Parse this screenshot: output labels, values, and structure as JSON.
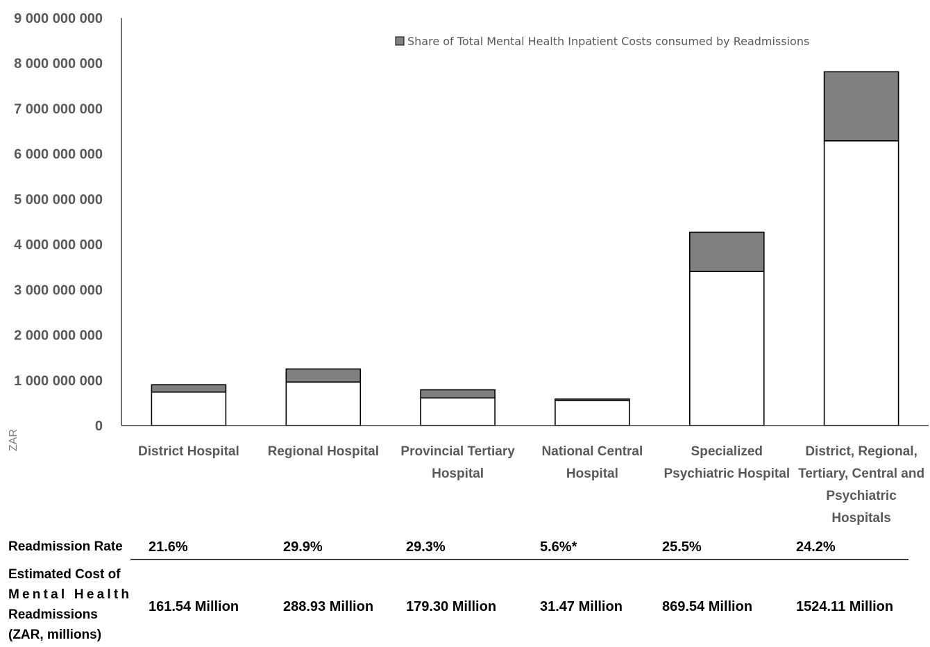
{
  "chart_data": {
    "type": "bar",
    "stacked": true,
    "categories": [
      [
        "District Hospital"
      ],
      [
        "Regional Hospital"
      ],
      [
        "Provincial Tertiary",
        "Hospital"
      ],
      [
        "National Central",
        "Hospital"
      ],
      [
        "Specialized",
        "Psychiatric Hospital"
      ],
      [
        "District, Regional,",
        "Tertiary, Central and",
        "Psychiatric",
        "Hospitals"
      ]
    ],
    "series": [
      {
        "values": [
          740000000,
          960000000,
          610000000,
          555000000,
          3400000000,
          6290000000
        ],
        "color": "#ffffff"
      },
      {
        "name": "Share of Total Mental Health Inpatient Costs consumed by Readmissions",
        "values": [
          162000000,
          289000000,
          179000000,
          31000000,
          870000000,
          1524000000
        ],
        "color": "#808080"
      }
    ],
    "ylabel": "ZAR",
    "ylim": [
      0,
      9000000000
    ],
    "yticks": [
      {
        "value": 0,
        "label": "0"
      },
      {
        "value": 1000000000,
        "label": "1 000 000 000"
      },
      {
        "value": 2000000000,
        "label": "2 000 000 000"
      },
      {
        "value": 3000000000,
        "label": "3 000 000 000"
      },
      {
        "value": 4000000000,
        "label": "4 000 000 000"
      },
      {
        "value": 5000000000,
        "label": "5 000 000 000"
      },
      {
        "value": 6000000000,
        "label": "6 000 000 000"
      },
      {
        "value": 7000000000,
        "label": "7 000 000 000"
      },
      {
        "value": 8000000000,
        "label": "8 000 000 000"
      },
      {
        "value": 9000000000,
        "label": "9 000 000 000"
      }
    ],
    "legend_position": "top-right",
    "grid": false
  },
  "table": {
    "rows": [
      {
        "header": [
          "Readmission Rate"
        ],
        "values": [
          "21.6%",
          "29.9%",
          "29.3%",
          "5.6%*",
          "25.5%",
          "24.2%"
        ]
      },
      {
        "header": [
          "Estimated Cost of",
          "Mental Health",
          "Readmissions",
          "(ZAR, millions)"
        ],
        "values": [
          "161.54 Million",
          "288.93 Million",
          "179.30 Million",
          "31.47 Million",
          "869.54 Million",
          "1524.11 Million"
        ]
      }
    ]
  }
}
